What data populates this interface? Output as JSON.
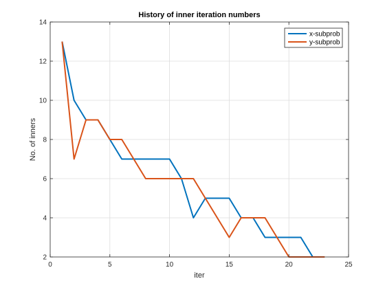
{
  "chart_data": {
    "type": "line",
    "title": "History of inner iteration numbers",
    "xlabel": "iter",
    "ylabel": "No. of inners",
    "xlim": [
      0,
      25
    ],
    "ylim": [
      2,
      14
    ],
    "xticks": [
      0,
      5,
      10,
      15,
      20,
      25
    ],
    "yticks": [
      2,
      4,
      6,
      8,
      10,
      12,
      14
    ],
    "grid": true,
    "legend_position": "top-right",
    "series": [
      {
        "name": "x-subprob",
        "color": "#0072BD",
        "x": [
          1,
          2,
          3,
          4,
          5,
          6,
          7,
          8,
          9,
          10,
          11,
          12,
          13,
          14,
          15,
          16,
          17,
          18,
          19,
          20,
          21,
          22
        ],
        "y": [
          13,
          10,
          9,
          9,
          8,
          7,
          7,
          7,
          7,
          7,
          6,
          4,
          5,
          5,
          5,
          4,
          4,
          3,
          3,
          3,
          3,
          2
        ]
      },
      {
        "name": "y-subprob",
        "color": "#D95319",
        "x": [
          1,
          2,
          3,
          4,
          5,
          6,
          7,
          8,
          9,
          10,
          11,
          12,
          13,
          14,
          15,
          16,
          17,
          18,
          19,
          20,
          21,
          22,
          23
        ],
        "y": [
          13,
          7,
          9,
          9,
          8,
          8,
          7,
          6,
          6,
          6,
          6,
          6,
          5,
          4,
          3,
          4,
          4,
          4,
          3,
          2,
          2,
          2,
          2
        ]
      }
    ]
  }
}
